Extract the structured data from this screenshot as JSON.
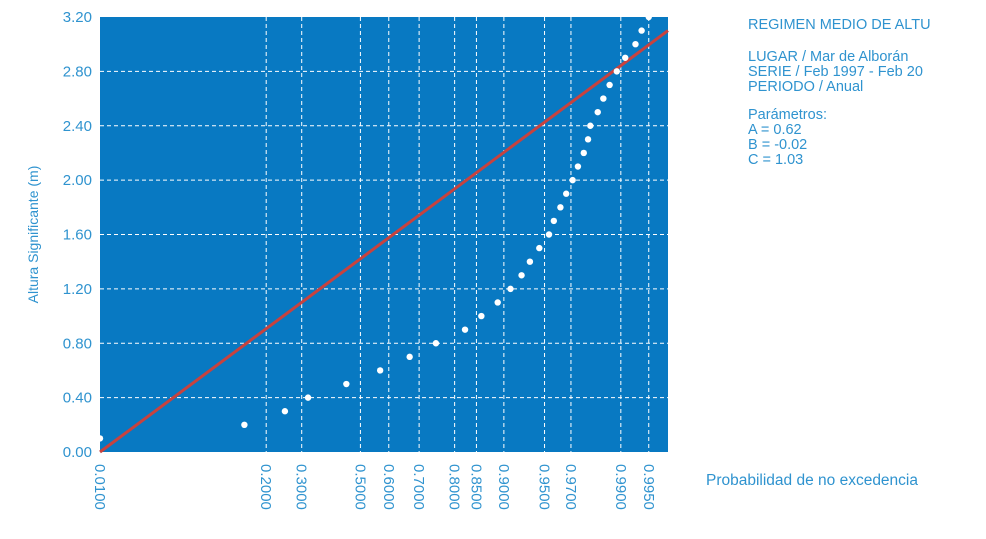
{
  "chart_data": {
    "type": "scatter",
    "title": "REGIMEN MEDIO DE ALTU",
    "ylabel": "Altura Significante (m)",
    "xlabel": "Probabilidad de no excedencia",
    "ylim": [
      0,
      3.2
    ],
    "yticks": [
      "0.00",
      "0.40",
      "0.80",
      "1.20",
      "1.60",
      "2.00",
      "2.40",
      "2.80",
      "3.20"
    ],
    "xticks": [
      {
        "label": "0.0100",
        "p": 0.01
      },
      {
        "label": "0.2000",
        "p": 0.2
      },
      {
        "label": "0.3000",
        "p": 0.3
      },
      {
        "label": "0.5000",
        "p": 0.5
      },
      {
        "label": "0.6000",
        "p": 0.6
      },
      {
        "label": "0.7000",
        "p": 0.7
      },
      {
        "label": "0.8000",
        "p": 0.8
      },
      {
        "label": "0.8500",
        "p": 0.85
      },
      {
        "label": "0.9000",
        "p": 0.9
      },
      {
        "label": "0.9500",
        "p": 0.95
      },
      {
        "label": "0.9700",
        "p": 0.97
      },
      {
        "label": "0.9900",
        "p": 0.99
      },
      {
        "label": "0.9950",
        "p": 0.995
      }
    ],
    "series": [
      {
        "points": [
          [
            0.01,
            0.1
          ],
          [
            0.15,
            0.2
          ],
          [
            0.25,
            0.3
          ],
          [
            0.32,
            0.4
          ],
          [
            0.45,
            0.5
          ],
          [
            0.57,
            0.6
          ],
          [
            0.67,
            0.7
          ],
          [
            0.75,
            0.8
          ],
          [
            0.825,
            0.9
          ],
          [
            0.86,
            1.0
          ],
          [
            0.89,
            1.1
          ],
          [
            0.91,
            1.2
          ],
          [
            0.925,
            1.3
          ],
          [
            0.935,
            1.4
          ],
          [
            0.945,
            1.5
          ],
          [
            0.954,
            1.6
          ],
          [
            0.958,
            1.7
          ],
          [
            0.963,
            1.8
          ],
          [
            0.967,
            1.9
          ],
          [
            0.971,
            2.0
          ],
          [
            0.974,
            2.1
          ],
          [
            0.977,
            2.2
          ],
          [
            0.979,
            2.3
          ],
          [
            0.98,
            2.4
          ],
          [
            0.983,
            2.5
          ],
          [
            0.985,
            2.6
          ],
          [
            0.987,
            2.7
          ],
          [
            0.989,
            2.8
          ],
          [
            0.991,
            2.9
          ],
          [
            0.993,
            3.0
          ],
          [
            0.994,
            3.1
          ],
          [
            0.995,
            3.2
          ]
        ]
      },
      {
        "type": "line",
        "points": [
          [
            0.01,
            0.0
          ],
          [
            0.997,
            3.1
          ]
        ]
      }
    ],
    "grid": true,
    "colors": {
      "background": "#0879c2",
      "points": "#ffffff",
      "line": "#c8423e",
      "text": "#2f93cf",
      "grid": "#ffffff"
    }
  },
  "info": {
    "title": "REGIMEN MEDIO DE ALTU",
    "lugar": "LUGAR / Mar de Alborán",
    "serie": "SERIE / Feb 1997 - Feb 20",
    "periodo": "PERIODO / Anual",
    "params_title": "Parámetros:",
    "param_a": "A = 0.62",
    "param_b": "B = -0.02",
    "param_c": "C = 1.03"
  }
}
